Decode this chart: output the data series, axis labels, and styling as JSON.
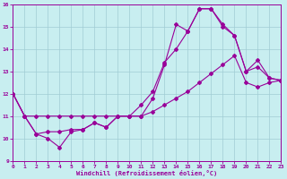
{
  "bg_color": "#c8eef0",
  "grid_color": "#a0ccd4",
  "line_color": "#990099",
  "xlim": [
    0,
    23
  ],
  "ylim": [
    9,
    16
  ],
  "xticks": [
    0,
    1,
    2,
    3,
    4,
    5,
    6,
    7,
    8,
    9,
    10,
    11,
    12,
    13,
    14,
    15,
    16,
    17,
    18,
    19,
    20,
    21,
    22,
    23
  ],
  "yticks": [
    9,
    10,
    11,
    12,
    13,
    14,
    15,
    16
  ],
  "xlabel": "Windchill (Refroidissement éolien,°C)",
  "line1": [
    12,
    11,
    10.2,
    10.0,
    9.6,
    10.3,
    10.4,
    10.7,
    10.5,
    11.0,
    11.0,
    11.0,
    11.8,
    13.3,
    15.1,
    14.8,
    15.8,
    15.8,
    15.1,
    14.6,
    13.0,
    13.5,
    12.7,
    12.6
  ],
  "line2": [
    12,
    11,
    10.2,
    10.3,
    10.3,
    10.4,
    10.4,
    10.7,
    10.5,
    11.0,
    11.0,
    11.5,
    12.1,
    13.4,
    14.0,
    14.8,
    15.8,
    15.8,
    15.0,
    14.6,
    13.0,
    13.2,
    12.7,
    12.6
  ],
  "line3": [
    12,
    11,
    11,
    11,
    11,
    11,
    11,
    11,
    11,
    11,
    11,
    11,
    11.2,
    11.5,
    11.8,
    12.1,
    12.5,
    12.9,
    13.3,
    13.7,
    12.5,
    12.3,
    12.5,
    12.6
  ]
}
